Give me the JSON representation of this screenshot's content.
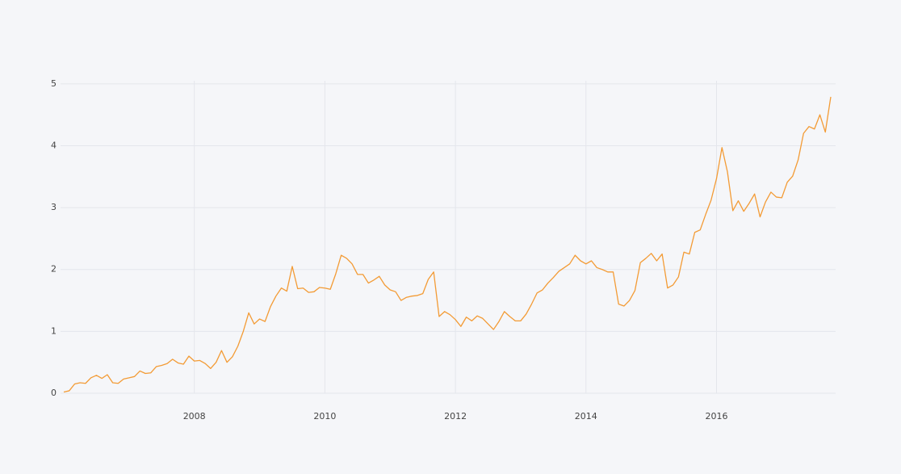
{
  "chart_data": {
    "type": "line",
    "x": [
      "2006-01",
      "2006-02",
      "2006-03",
      "2006-04",
      "2006-05",
      "2006-06",
      "2006-07",
      "2006-08",
      "2006-09",
      "2006-10",
      "2006-11",
      "2006-12",
      "2007-01",
      "2007-02",
      "2007-03",
      "2007-04",
      "2007-05",
      "2007-06",
      "2007-07",
      "2007-08",
      "2007-09",
      "2007-10",
      "2007-11",
      "2007-12",
      "2008-01",
      "2008-02",
      "2008-03",
      "2008-04",
      "2008-05",
      "2008-06",
      "2008-07",
      "2008-08",
      "2008-09",
      "2008-10",
      "2008-11",
      "2008-12",
      "2009-01",
      "2009-02",
      "2009-03",
      "2009-04",
      "2009-05",
      "2009-06",
      "2009-07",
      "2009-08",
      "2009-09",
      "2009-10",
      "2009-11",
      "2009-12",
      "2010-01",
      "2010-02",
      "2010-03",
      "2010-04",
      "2010-05",
      "2010-06",
      "2010-07",
      "2010-08",
      "2010-09",
      "2010-10",
      "2010-11",
      "2010-12",
      "2011-01",
      "2011-02",
      "2011-03",
      "2011-04",
      "2011-05",
      "2011-06",
      "2011-07",
      "2011-08",
      "2011-09",
      "2011-10",
      "2011-11",
      "2011-12",
      "2012-01",
      "2012-02",
      "2012-03",
      "2012-04",
      "2012-05",
      "2012-06",
      "2012-07",
      "2012-08",
      "2012-09",
      "2012-10",
      "2012-11",
      "2012-12",
      "2013-01",
      "2013-02",
      "2013-03",
      "2013-04",
      "2013-05",
      "2013-06",
      "2013-07",
      "2013-08",
      "2013-09",
      "2013-10",
      "2013-11",
      "2013-12",
      "2014-01",
      "2014-02",
      "2014-03",
      "2014-04",
      "2014-05",
      "2014-06",
      "2014-07",
      "2014-08",
      "2014-09",
      "2014-10",
      "2014-11",
      "2014-12",
      "2015-01",
      "2015-02",
      "2015-03",
      "2015-04",
      "2015-05",
      "2015-06",
      "2015-07",
      "2015-08",
      "2015-09",
      "2015-10",
      "2015-11",
      "2015-12",
      "2016-01",
      "2016-02",
      "2016-03",
      "2016-04",
      "2016-05",
      "2016-06",
      "2016-07",
      "2016-08",
      "2016-09",
      "2016-10",
      "2016-11",
      "2016-12",
      "2017-01",
      "2017-02",
      "2017-03",
      "2017-04",
      "2017-05",
      "2017-06",
      "2017-07",
      "2017-08",
      "2017-09",
      "2017-10"
    ],
    "series": [
      {
        "color": "#f39b35",
        "values": [
          0.02,
          0.04,
          0.15,
          0.17,
          0.16,
          0.25,
          0.29,
          0.24,
          0.3,
          0.17,
          0.16,
          0.23,
          0.25,
          0.27,
          0.36,
          0.32,
          0.33,
          0.43,
          0.45,
          0.48,
          0.55,
          0.49,
          0.47,
          0.6,
          0.52,
          0.53,
          0.48,
          0.4,
          0.5,
          0.69,
          0.5,
          0.59,
          0.76,
          1.0,
          1.3,
          1.12,
          1.2,
          1.16,
          1.4,
          1.57,
          1.7,
          1.65,
          2.05,
          1.69,
          1.7,
          1.63,
          1.64,
          1.71,
          1.7,
          1.68,
          1.93,
          2.23,
          2.18,
          2.09,
          1.92,
          1.92,
          1.78,
          1.83,
          1.89,
          1.75,
          1.67,
          1.64,
          1.5,
          1.55,
          1.57,
          1.58,
          1.61,
          1.84,
          1.96,
          1.24,
          1.32,
          1.27,
          1.19,
          1.08,
          1.23,
          1.17,
          1.25,
          1.21,
          1.12,
          1.03,
          1.16,
          1.32,
          1.24,
          1.17,
          1.17,
          1.28,
          1.44,
          1.62,
          1.67,
          1.78,
          1.87,
          1.97,
          2.03,
          2.09,
          2.23,
          2.14,
          2.09,
          2.14,
          2.03,
          2.0,
          1.96,
          1.96,
          1.44,
          1.41,
          1.5,
          1.66,
          2.11,
          2.18,
          2.26,
          2.14,
          2.25,
          1.7,
          1.75,
          1.88,
          2.28,
          2.25,
          2.6,
          2.64,
          2.89,
          3.12,
          3.47,
          3.97,
          3.58,
          2.95,
          3.11,
          2.94,
          3.07,
          3.22,
          2.85,
          3.09,
          3.25,
          3.17,
          3.16,
          3.41,
          3.51,
          3.77,
          4.2,
          4.31,
          4.27,
          4.5,
          4.22,
          4.79
        ]
      }
    ],
    "xlim": [
      "2006-01",
      "2017-10"
    ],
    "xticks": [
      "2008",
      "2010",
      "2012",
      "2014",
      "2016"
    ],
    "ylim": [
      0,
      5.05
    ],
    "yticks": [
      0,
      1,
      2,
      3,
      4,
      5
    ],
    "grid": true
  }
}
